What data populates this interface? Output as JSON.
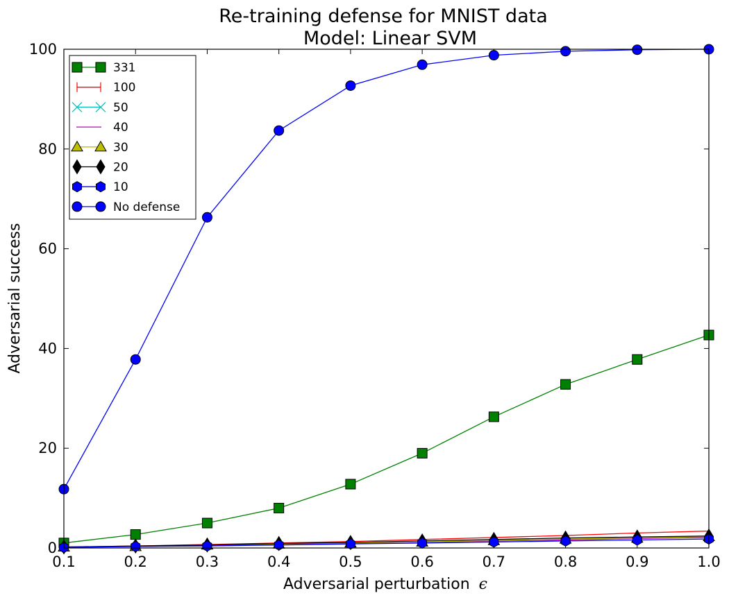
{
  "chart_data": {
    "type": "line",
    "title": "Re-training defense for MNIST data",
    "subtitle": "Model: Linear SVM",
    "xlabel_text": "Adversarial perturbation",
    "xlabel_symbol": "ϵ",
    "ylabel": "Adversarial success",
    "xlim": [
      0.1,
      1.0
    ],
    "ylim": [
      0,
      100
    ],
    "xticks": [
      "0.1",
      "0.2",
      "0.3",
      "0.4",
      "0.5",
      "0.6",
      "0.7",
      "0.8",
      "0.9",
      "1.0"
    ],
    "yticks": [
      "0",
      "20",
      "40",
      "60",
      "80",
      "100"
    ],
    "legend_position": "top-left",
    "x": [
      0.1,
      0.2,
      0.3,
      0.4,
      0.5,
      0.6,
      0.7,
      0.8,
      0.9,
      1.0
    ],
    "series": [
      {
        "name": "331",
        "color": "#008000",
        "marker": "square",
        "draw_markers": true,
        "values": [
          1.0,
          2.7,
          5.0,
          8.0,
          12.8,
          19.0,
          26.3,
          32.8,
          37.8,
          42.7
        ]
      },
      {
        "name": "100",
        "color": "#ff0000",
        "marker": "vline",
        "draw_markers": false,
        "values": [
          0.2,
          0.4,
          0.7,
          1.0,
          1.3,
          1.7,
          2.1,
          2.5,
          3.0,
          3.4
        ]
      },
      {
        "name": "50",
        "color": "#00bfbf",
        "marker": "x",
        "draw_markers": false,
        "values": [
          0.2,
          0.3,
          0.5,
          0.7,
          0.9,
          1.1,
          1.4,
          1.7,
          1.9,
          2.2
        ]
      },
      {
        "name": "40",
        "color": "#bf00bf",
        "marker": "hline",
        "draw_markers": false,
        "values": [
          0.2,
          0.3,
          0.5,
          0.7,
          0.9,
          1.1,
          1.4,
          1.6,
          1.9,
          2.1
        ]
      },
      {
        "name": "30",
        "color": "#bfbf00",
        "marker": "triangle",
        "draw_markers": true,
        "values": [
          0.2,
          0.3,
          0.6,
          0.8,
          1.0,
          1.2,
          1.5,
          1.8,
          2.0,
          2.3
        ]
      },
      {
        "name": "20",
        "color": "#000000",
        "marker": "diamond",
        "draw_markers": true,
        "values": [
          0.2,
          0.4,
          0.6,
          0.9,
          1.1,
          1.4,
          1.7,
          2.0,
          2.2,
          2.4
        ]
      },
      {
        "name": "10",
        "color": "#0000ff",
        "marker": "hexagon",
        "draw_markers": true,
        "values": [
          0.1,
          0.3,
          0.4,
          0.6,
          0.8,
          1.0,
          1.2,
          1.4,
          1.6,
          1.8
        ]
      },
      {
        "name": "No defense",
        "color": "#0000ff",
        "marker": "circle",
        "draw_markers": true,
        "values": [
          11.8,
          37.8,
          66.3,
          83.7,
          92.7,
          96.9,
          98.8,
          99.6,
          99.9,
          100.0
        ]
      }
    ]
  }
}
